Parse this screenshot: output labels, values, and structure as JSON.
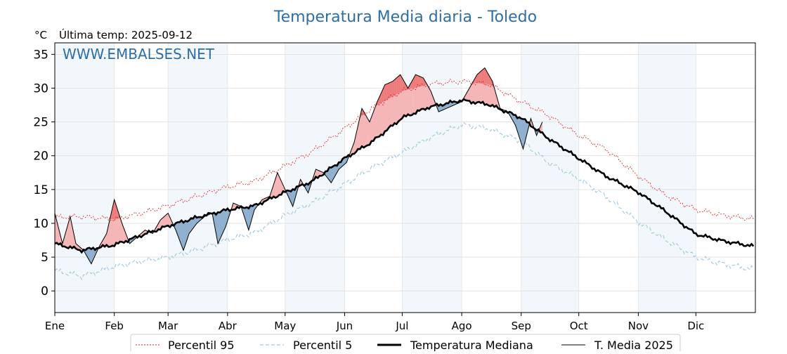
{
  "chart_data": {
    "type": "line",
    "title": "Temperatura Media diaria - Toledo",
    "unit_label": "°C",
    "last_temp_label": "Última temp: 2025-09-12",
    "watermark": "WWW.EMBALSES.NET",
    "ylim": [
      -3.2,
      36.7
    ],
    "y_ticks": [
      0,
      5,
      10,
      15,
      20,
      25,
      30,
      35
    ],
    "x_range": [
      "2025-01-01",
      "2025-12-31"
    ],
    "months": [
      {
        "label": "Ene",
        "date": "2025-01-01"
      },
      {
        "label": "Feb",
        "date": "2025-02-01"
      },
      {
        "label": "Mar",
        "date": "2025-03-01"
      },
      {
        "label": "Abr",
        "date": "2025-04-01"
      },
      {
        "label": "May",
        "date": "2025-05-01"
      },
      {
        "label": "Jun",
        "date": "2025-06-01"
      },
      {
        "label": "Jul",
        "date": "2025-07-01"
      },
      {
        "label": "Ago",
        "date": "2025-08-01"
      },
      {
        "label": "Sep",
        "date": "2025-09-01"
      },
      {
        "label": "Oct",
        "date": "2025-10-01"
      },
      {
        "label": "Nov",
        "date": "2025-11-01"
      },
      {
        "label": "Dic",
        "date": "2025-12-01"
      }
    ],
    "grid": true,
    "legend_position": "bottom-center",
    "series": [
      {
        "name": "Percentil 95",
        "color": "#e41a1c",
        "style": "dotted",
        "points": [
          [
            "2025-01-01",
            10.9
          ],
          [
            "2025-01-15",
            11.0
          ],
          [
            "2025-02-01",
            10.6
          ],
          [
            "2025-02-15",
            11.5
          ],
          [
            "2025-03-01",
            12.6
          ],
          [
            "2025-03-15",
            13.9
          ],
          [
            "2025-04-01",
            15.4
          ],
          [
            "2025-04-15",
            16.2
          ],
          [
            "2025-05-01",
            18.5
          ],
          [
            "2025-05-15",
            20.6
          ],
          [
            "2025-06-01",
            24.0
          ],
          [
            "2025-06-15",
            27.0
          ],
          [
            "2025-07-01",
            29.6
          ],
          [
            "2025-07-15",
            30.6
          ],
          [
            "2025-08-01",
            31.0
          ],
          [
            "2025-08-15",
            30.6
          ],
          [
            "2025-09-01",
            28.0
          ],
          [
            "2025-09-15",
            26.0
          ],
          [
            "2025-10-01",
            23.0
          ],
          [
            "2025-10-15",
            21.0
          ],
          [
            "2025-11-01",
            17.0
          ],
          [
            "2025-11-15",
            14.2
          ],
          [
            "2025-12-01",
            12.0
          ],
          [
            "2025-12-15",
            11.2
          ],
          [
            "2025-12-31",
            10.6
          ]
        ]
      },
      {
        "name": "Percentil 5",
        "color": "#9ecae1",
        "style": "dashed",
        "points": [
          [
            "2025-01-01",
            3.0
          ],
          [
            "2025-01-15",
            2.2
          ],
          [
            "2025-02-01",
            3.6
          ],
          [
            "2025-02-15",
            4.4
          ],
          [
            "2025-03-01",
            5.0
          ],
          [
            "2025-03-15",
            6.0
          ],
          [
            "2025-04-01",
            7.6
          ],
          [
            "2025-04-15",
            8.6
          ],
          [
            "2025-05-01",
            11.2
          ],
          [
            "2025-05-15",
            13.0
          ],
          [
            "2025-06-01",
            15.8
          ],
          [
            "2025-06-15",
            18.2
          ],
          [
            "2025-07-01",
            20.5
          ],
          [
            "2025-07-15",
            22.6
          ],
          [
            "2025-08-01",
            24.6
          ],
          [
            "2025-08-15",
            24.0
          ],
          [
            "2025-09-01",
            22.2
          ],
          [
            "2025-09-15",
            19.0
          ],
          [
            "2025-10-01",
            16.6
          ],
          [
            "2025-10-15",
            14.0
          ],
          [
            "2025-11-01",
            10.2
          ],
          [
            "2025-11-15",
            7.6
          ],
          [
            "2025-12-01",
            5.0
          ],
          [
            "2025-12-15",
            4.0
          ],
          [
            "2025-12-31",
            3.2
          ]
        ]
      },
      {
        "name": "Temperatura Mediana",
        "color": "#000000",
        "style": "thick",
        "points": [
          [
            "2025-01-01",
            7.0
          ],
          [
            "2025-01-15",
            6.0
          ],
          [
            "2025-02-01",
            6.8
          ],
          [
            "2025-02-15",
            8.2
          ],
          [
            "2025-03-01",
            9.6
          ],
          [
            "2025-03-15",
            10.8
          ],
          [
            "2025-04-01",
            12.0
          ],
          [
            "2025-04-15",
            12.6
          ],
          [
            "2025-05-01",
            14.6
          ],
          [
            "2025-05-15",
            16.2
          ],
          [
            "2025-06-01",
            19.6
          ],
          [
            "2025-06-15",
            22.0
          ],
          [
            "2025-07-01",
            25.6
          ],
          [
            "2025-07-15",
            27.2
          ],
          [
            "2025-08-01",
            28.2
          ],
          [
            "2025-08-15",
            27.6
          ],
          [
            "2025-09-01",
            25.6
          ],
          [
            "2025-09-15",
            22.6
          ],
          [
            "2025-10-01",
            19.6
          ],
          [
            "2025-10-15",
            17.0
          ],
          [
            "2025-11-01",
            14.6
          ],
          [
            "2025-11-15",
            11.8
          ],
          [
            "2025-12-01",
            8.4
          ],
          [
            "2025-12-15",
            7.4
          ],
          [
            "2025-12-31",
            6.6
          ]
        ]
      },
      {
        "name": "T. Media 2025",
        "color": "#000000",
        "style": "thin",
        "points": [
          [
            "2025-01-01",
            11.5
          ],
          [
            "2025-01-05",
            7.0
          ],
          [
            "2025-01-09",
            11.0
          ],
          [
            "2025-01-12",
            7.0
          ],
          [
            "2025-01-16",
            6.0
          ],
          [
            "2025-01-20",
            4.0
          ],
          [
            "2025-01-24",
            6.5
          ],
          [
            "2025-01-28",
            8.5
          ],
          [
            "2025-02-01",
            13.5
          ],
          [
            "2025-02-05",
            10.0
          ],
          [
            "2025-02-09",
            7.0
          ],
          [
            "2025-02-13",
            8.0
          ],
          [
            "2025-02-17",
            9.0
          ],
          [
            "2025-02-21",
            8.5
          ],
          [
            "2025-02-25",
            10.5
          ],
          [
            "2025-03-01",
            11.5
          ],
          [
            "2025-03-05",
            9.0
          ],
          [
            "2025-03-09",
            6.0
          ],
          [
            "2025-03-12",
            8.5
          ],
          [
            "2025-03-16",
            10.0
          ],
          [
            "2025-03-20",
            11.0
          ],
          [
            "2025-03-24",
            11.5
          ],
          [
            "2025-03-27",
            7.0
          ],
          [
            "2025-03-31",
            9.5
          ],
          [
            "2025-04-04",
            13.0
          ],
          [
            "2025-04-08",
            12.5
          ],
          [
            "2025-04-12",
            9.0
          ],
          [
            "2025-04-15",
            12.0
          ],
          [
            "2025-04-19",
            13.5
          ],
          [
            "2025-04-23",
            14.0
          ],
          [
            "2025-04-27",
            17.5
          ],
          [
            "2025-05-01",
            15.0
          ],
          [
            "2025-05-05",
            12.5
          ],
          [
            "2025-05-09",
            16.5
          ],
          [
            "2025-05-13",
            14.5
          ],
          [
            "2025-05-17",
            18.0
          ],
          [
            "2025-05-21",
            17.5
          ],
          [
            "2025-05-25",
            16.0
          ],
          [
            "2025-05-29",
            18.0
          ],
          [
            "2025-06-02",
            19.0
          ],
          [
            "2025-06-06",
            22.0
          ],
          [
            "2025-06-10",
            27.0
          ],
          [
            "2025-06-14",
            25.0
          ],
          [
            "2025-06-18",
            28.0
          ],
          [
            "2025-06-22",
            30.5
          ],
          [
            "2025-06-26",
            31.0
          ],
          [
            "2025-06-30",
            32.0
          ],
          [
            "2025-07-04",
            30.0
          ],
          [
            "2025-07-08",
            32.0
          ],
          [
            "2025-07-12",
            31.5
          ],
          [
            "2025-07-16",
            29.5
          ],
          [
            "2025-07-20",
            26.5
          ],
          [
            "2025-07-24",
            27.0
          ],
          [
            "2025-07-28",
            27.5
          ],
          [
            "2025-08-01",
            28.0
          ],
          [
            "2025-08-05",
            30.0
          ],
          [
            "2025-08-09",
            32.0
          ],
          [
            "2025-08-13",
            33.0
          ],
          [
            "2025-08-17",
            31.0
          ],
          [
            "2025-08-21",
            27.0
          ],
          [
            "2025-08-25",
            26.5
          ],
          [
            "2025-08-29",
            24.5
          ],
          [
            "2025-09-02",
            21.0
          ],
          [
            "2025-09-06",
            25.5
          ],
          [
            "2025-09-09",
            23.0
          ],
          [
            "2025-09-12",
            25.0
          ]
        ]
      }
    ]
  }
}
